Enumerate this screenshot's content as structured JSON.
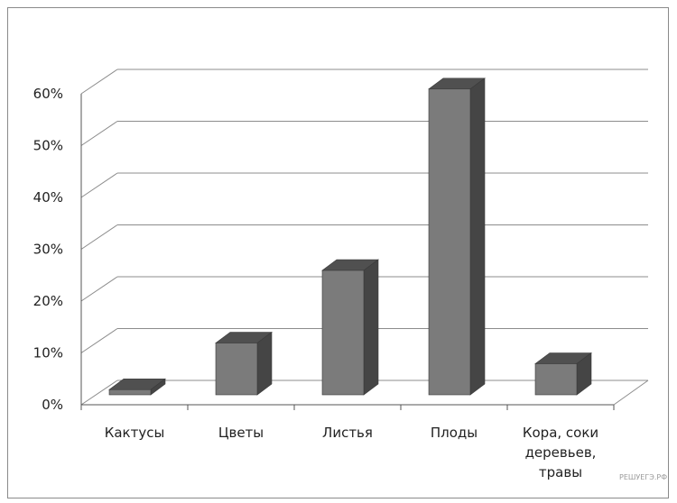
{
  "chart_data": {
    "type": "bar",
    "title": "",
    "xlabel": "",
    "ylabel": "",
    "categories": [
      [
        "Кактусы"
      ],
      [
        "Цветы"
      ],
      [
        "Листья"
      ],
      [
        "Плоды"
      ],
      [
        "Кора, соки",
        "деревьев,",
        "травы"
      ]
    ],
    "values": [
      0.01,
      0.1,
      0.24,
      0.59,
      0.06
    ],
    "ylim": [
      0,
      0.6
    ],
    "yticks": [
      "0%",
      "10%",
      "20%",
      "30%",
      "40%",
      "50%",
      "60%"
    ],
    "grid": true,
    "legend": "none",
    "style": "3d",
    "colors": {
      "bar_front": "#7b7b7b",
      "bar_top": "#505050",
      "bar_side": "#454545",
      "grid": "#8c8c8c"
    }
  },
  "watermark": "РЕШУЕГЭ.РФ"
}
